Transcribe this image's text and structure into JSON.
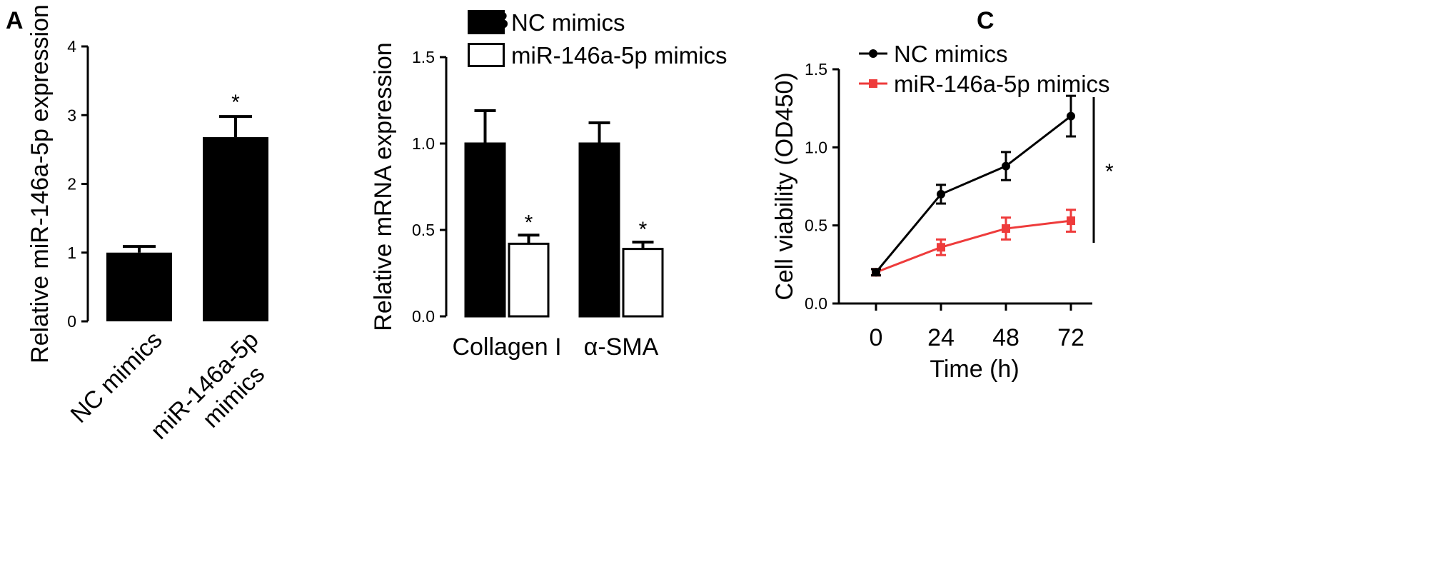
{
  "colors": {
    "black": "#000000",
    "red": "#ee3b3b",
    "white": "#ffffff"
  },
  "chart_data": [
    {
      "panel": "A",
      "type": "bar",
      "ylabel": "Relative miR-146a-5p expression",
      "ylim": [
        0,
        4
      ],
      "yticks": [
        0,
        1,
        2,
        3,
        4
      ],
      "yticklabels": [
        "0",
        "1",
        "2",
        "3",
        "4"
      ],
      "categories": [
        [
          "NC mimics"
        ],
        [
          "miR-146a-5p",
          "mimics"
        ]
      ],
      "values": [
        1.0,
        2.68
      ],
      "errors": [
        0.09,
        0.3
      ],
      "fills": [
        "#000000",
        "#000000"
      ],
      "significance": [
        "",
        "*"
      ],
      "grid": false
    },
    {
      "panel": "B",
      "type": "bar",
      "ylabel": "Relative mRNA expression",
      "ylim": [
        0,
        1.5
      ],
      "yticks": [
        0,
        0.5,
        1.0,
        1.5
      ],
      "yticklabels": [
        "0.0",
        "0.5",
        "1.0",
        "1.5"
      ],
      "categories": [
        "Collagen I",
        "α-SMA"
      ],
      "series": [
        {
          "name": "NC mimics",
          "values": [
            1.0,
            1.0
          ],
          "errors": [
            0.19,
            0.12
          ],
          "fill": "#000000",
          "significance": [
            "",
            ""
          ]
        },
        {
          "name": "miR-146a-5p mimics",
          "values": [
            0.42,
            0.39
          ],
          "errors": [
            0.05,
            0.04
          ],
          "fill": "#ffffff",
          "significance": [
            "*",
            "*"
          ]
        }
      ],
      "legend": "top",
      "grid": false
    },
    {
      "panel": "C",
      "type": "line",
      "xlabel": "Time (h)",
      "ylabel": "Cell viability (OD450)",
      "x": [
        0,
        24,
        48,
        72
      ],
      "xticklabels": [
        "0",
        "24",
        "48",
        "72"
      ],
      "ylim": [
        0,
        1.5
      ],
      "yticks": [
        0,
        0.5,
        1.0,
        1.5
      ],
      "yticklabels": [
        "0.0",
        "0.5",
        "1.0",
        "1.5"
      ],
      "series": [
        {
          "name": "NC mimics",
          "values": [
            0.2,
            0.7,
            0.88,
            1.2
          ],
          "errors": [
            0.02,
            0.06,
            0.09,
            0.13
          ],
          "color": "#000000",
          "marker": "circle"
        },
        {
          "name": "miR-146a-5p mimics",
          "values": [
            0.2,
            0.36,
            0.48,
            0.53
          ],
          "errors": [
            0.02,
            0.05,
            0.07,
            0.07
          ],
          "color": "#ee3b3b",
          "marker": "square"
        }
      ],
      "significance": "*",
      "legend": "top-left",
      "grid": false
    }
  ]
}
